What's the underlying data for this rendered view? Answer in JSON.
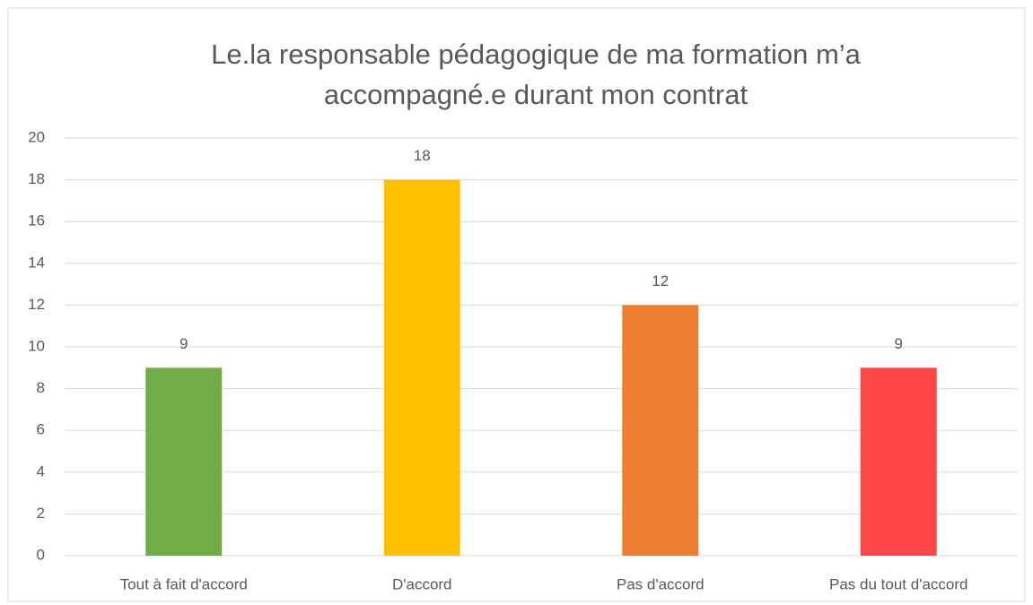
{
  "chart_data": {
    "type": "bar",
    "title": [
      "Le.la responsable pédagogique de ma formation m’a",
      "accompagné.e durant mon contrat"
    ],
    "categories": [
      "Tout à fait d'accord",
      "D'accord",
      "Pas d'accord",
      "Pas du tout d'accord"
    ],
    "values": [
      9,
      18,
      12,
      9
    ],
    "colors": [
      "#70ad47",
      "#ffc000",
      "#ed7d31",
      "#ff4747"
    ],
    "ylim": [
      0,
      20
    ],
    "yticks": [
      0,
      2,
      4,
      6,
      8,
      10,
      12,
      14,
      16,
      18,
      20
    ],
    "grid": true,
    "data_labels": true
  }
}
